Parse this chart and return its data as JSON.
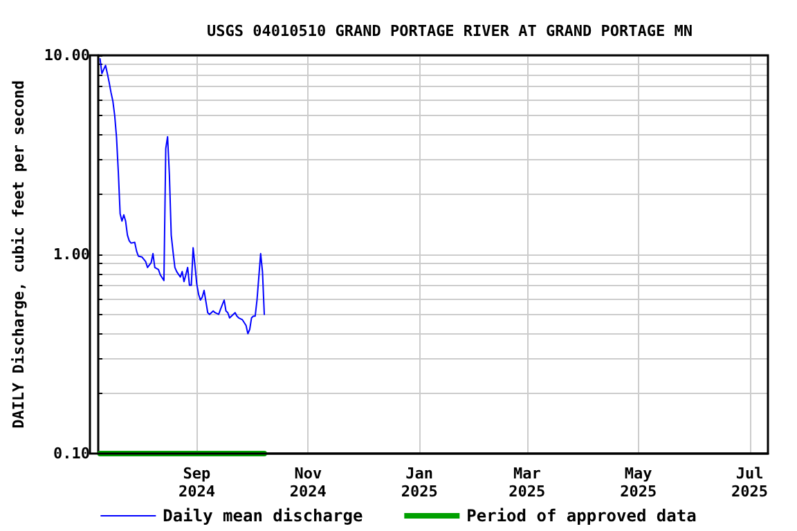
{
  "chart_data": {
    "type": "line",
    "title": "USGS 04010510 GRAND PORTAGE RIVER AT GRAND PORTAGE MN",
    "ylabel": "DAILY Discharge, cubic feet per second",
    "log": "y",
    "grid": true,
    "legend": "bottom",
    "marker": "none",
    "line_style": "solid",
    "xlim": [
      "2024-07-09",
      "2025-07-11"
    ],
    "xticks": [
      {
        "value": "2024-09-01",
        "label": "Sep\n2024"
      },
      {
        "value": "2024-11-01",
        "label": "Nov\n2024"
      },
      {
        "value": "2025-01-01",
        "label": "Jan\n2025"
      },
      {
        "value": "2025-03-01",
        "label": "Mar\n2025"
      },
      {
        "value": "2025-05-01",
        "label": "May\n2025"
      },
      {
        "value": "2025-07-01",
        "label": "Jul\n2025"
      }
    ],
    "ylim": [
      0.1,
      10
    ],
    "yticks": [
      {
        "value": 0.1,
        "label": "0.10"
      },
      {
        "value": 0.2,
        "label": null
      },
      {
        "value": 0.3,
        "label": null
      },
      {
        "value": 0.4,
        "label": null
      },
      {
        "value": 0.5,
        "label": null
      },
      {
        "value": 0.6,
        "label": null
      },
      {
        "value": 0.7,
        "label": null
      },
      {
        "value": 0.8,
        "label": null
      },
      {
        "value": 0.9,
        "label": null
      },
      {
        "value": 1,
        "label": "1.00"
      },
      {
        "value": 2,
        "label": null
      },
      {
        "value": 3,
        "label": null
      },
      {
        "value": 4,
        "label": null
      },
      {
        "value": 5,
        "label": null
      },
      {
        "value": 6,
        "label": null
      },
      {
        "value": 7,
        "label": null
      },
      {
        "value": 8,
        "label": null
      },
      {
        "value": 9,
        "label": null
      },
      {
        "value": 10,
        "label": "10.00"
      }
    ],
    "x": [
      "2024-07-10",
      "2024-07-11",
      "2024-07-12",
      "2024-07-13",
      "2024-07-14",
      "2024-07-15",
      "2024-07-16",
      "2024-07-17",
      "2024-07-18",
      "2024-07-19",
      "2024-07-20",
      "2024-07-21",
      "2024-07-22",
      "2024-07-23",
      "2024-07-24",
      "2024-07-25",
      "2024-07-26",
      "2024-07-27",
      "2024-07-29",
      "2024-07-30",
      "2024-07-31",
      "2024-08-02",
      "2024-08-04",
      "2024-08-05",
      "2024-08-07",
      "2024-08-08",
      "2024-08-09",
      "2024-08-11",
      "2024-08-12",
      "2024-08-14",
      "2024-08-15",
      "2024-08-16",
      "2024-08-17",
      "2024-08-18",
      "2024-08-19",
      "2024-08-20",
      "2024-08-21",
      "2024-08-23",
      "2024-08-24",
      "2024-08-25",
      "2024-08-26",
      "2024-08-27",
      "2024-08-28",
      "2024-08-29",
      "2024-08-30",
      "2024-08-31",
      "2024-09-01",
      "2024-09-02",
      "2024-09-03",
      "2024-09-04",
      "2024-09-05",
      "2024-09-06",
      "2024-09-07",
      "2024-09-08",
      "2024-09-10",
      "2024-09-11",
      "2024-09-13",
      "2024-09-14",
      "2024-09-16",
      "2024-09-17",
      "2024-09-18",
      "2024-09-19",
      "2024-09-20",
      "2024-09-22",
      "2024-09-23",
      "2024-09-24",
      "2024-09-26",
      "2024-09-28",
      "2024-09-29",
      "2024-09-30",
      "2024-10-01",
      "2024-10-02",
      "2024-10-03",
      "2024-10-04",
      "2024-10-05",
      "2024-10-06",
      "2024-10-07",
      "2024-10-08"
    ],
    "series": [
      {
        "name": "Daily mean discharge",
        "color": "#0000ff",
        "values": [
          9.6,
          8.1,
          8.5,
          8.9,
          8.1,
          7.3,
          6.5,
          5.9,
          5.0,
          3.9,
          2.6,
          1.6,
          1.47,
          1.58,
          1.47,
          1.25,
          1.17,
          1.14,
          1.15,
          1.04,
          0.98,
          0.97,
          0.92,
          0.86,
          0.91,
          1.01,
          0.86,
          0.84,
          0.79,
          0.74,
          3.4,
          3.9,
          2.5,
          1.25,
          1.03,
          0.86,
          0.82,
          0.77,
          0.82,
          0.73,
          0.79,
          0.86,
          0.7,
          0.7,
          1.08,
          0.88,
          0.71,
          0.63,
          0.59,
          0.61,
          0.66,
          0.58,
          0.51,
          0.5,
          0.52,
          0.51,
          0.5,
          0.53,
          0.59,
          0.52,
          0.51,
          0.48,
          0.49,
          0.51,
          0.49,
          0.48,
          0.47,
          0.44,
          0.4,
          0.42,
          0.48,
          0.49,
          0.49,
          0.59,
          0.77,
          1.01,
          0.82,
          0.5
        ]
      },
      {
        "name": "Period of approved data",
        "color": "#00a000",
        "x": [
          "2024-07-10",
          "2024-10-08"
        ],
        "values": [
          0.1,
          0.1
        ]
      }
    ]
  }
}
